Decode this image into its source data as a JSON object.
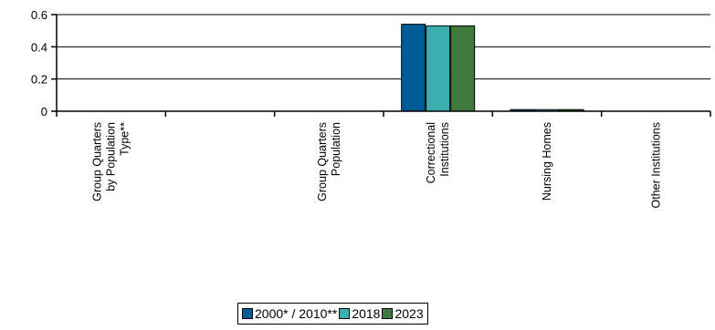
{
  "chart_data": {
    "type": "bar",
    "categories": [
      [
        "Group Quarters",
        "by Population",
        "Type**"
      ],
      [
        "Group Quarters",
        "Population"
      ],
      [
        "Correctional",
        "Institutions"
      ],
      [
        "Nursing Homes"
      ],
      [
        "Other Institutions"
      ]
    ],
    "series": [
      {
        "name": "2000* / 2010**",
        "color": "#005C96",
        "values": [
          0,
          0,
          0.54,
          0.01,
          0
        ]
      },
      {
        "name": "2018",
        "color": "#3BAFB0",
        "values": [
          0,
          0,
          0.53,
          0.01,
          0
        ]
      },
      {
        "name": "2023",
        "color": "#3E7A3B",
        "values": [
          0,
          0,
          0.53,
          0.01,
          0
        ]
      }
    ],
    "ylim": [
      0,
      0.6
    ],
    "yticks": [
      "0",
      "0.2",
      "0.4",
      "0.6"
    ],
    "ytick_values": [
      0,
      0.2,
      0.4,
      0.6
    ],
    "grid": true,
    "legend_position": "bottom"
  }
}
